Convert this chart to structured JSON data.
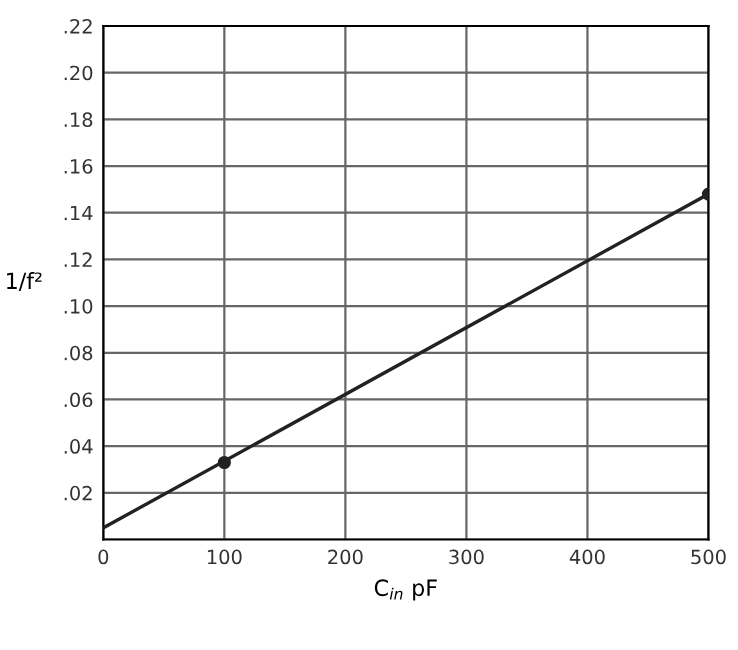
{
  "chart_data": {
    "type": "line",
    "xlabel": "C$_{in}$ pF",
    "ylabel": "1/f²",
    "series": [
      {
        "color": "#222222",
        "x": [
          0,
          500
        ],
        "values": [
          0.005,
          0.148
        ],
        "marker": "none"
      },
      {
        "type": "scatter",
        "color": "#222222",
        "x": [
          100,
          500
        ],
        "values": [
          0.033,
          0.148
        ],
        "marker": "circle"
      }
    ],
    "xlim": [
      0,
      500
    ],
    "xticks": [
      0,
      100,
      200,
      300,
      400,
      500
    ],
    "ylim": [
      0,
      0.22
    ],
    "yticks": [
      {
        "value": 0,
        "label": null
      },
      {
        "value": 0.02,
        "label": ".02"
      },
      {
        "value": 0.04,
        "label": ".04"
      },
      {
        "value": 0.06,
        "label": ".06"
      },
      {
        "value": 0.08,
        "label": ".08"
      },
      {
        "value": 0.1,
        "label": ".10"
      },
      {
        "value": 0.12,
        "label": ".12"
      },
      {
        "value": 0.14,
        "label": ".14"
      },
      {
        "value": 0.16,
        "label": ".16"
      },
      {
        "value": 0.18,
        "label": ".18"
      },
      {
        "value": 0.2,
        "label": ".20"
      },
      {
        "value": 0.22,
        "label": ".22"
      }
    ],
    "grid": true
  }
}
